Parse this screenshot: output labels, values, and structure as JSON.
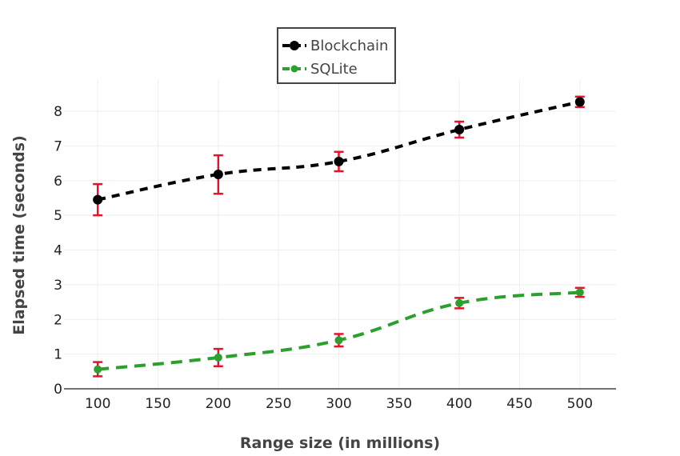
{
  "chart_data": {
    "type": "line",
    "xlabel": "Range size (in millions)",
    "ylabel": "Elapsed time (seconds)",
    "xlim": [
      72,
      530
    ],
    "ylim": [
      0,
      8.9
    ],
    "xticks": [
      100,
      150,
      200,
      250,
      300,
      350,
      400,
      450,
      500
    ],
    "yticks": [
      0,
      1,
      2,
      3,
      4,
      5,
      6,
      7,
      8
    ],
    "grid": true,
    "legend_position": "top-center",
    "x": [
      100,
      200,
      300,
      400,
      500
    ],
    "series": [
      {
        "name": "Blockchain",
        "color": "#000000",
        "values": [
          5.45,
          6.18,
          6.55,
          7.47,
          8.27
        ],
        "error_low": [
          5.0,
          5.62,
          6.27,
          7.24,
          8.12
        ],
        "error_high": [
          5.9,
          6.73,
          6.83,
          7.7,
          8.42
        ],
        "line_style": "dashed",
        "marker": "circle"
      },
      {
        "name": "SQLite",
        "color": "#2ca02c",
        "values": [
          0.56,
          0.9,
          1.4,
          2.47,
          2.78
        ],
        "error_low": [
          0.36,
          0.65,
          1.22,
          2.32,
          2.65
        ],
        "error_high": [
          0.77,
          1.15,
          1.58,
          2.62,
          2.91
        ],
        "line_style": "dashed",
        "marker": "circle"
      }
    ],
    "error_bar_color": "#e8112d"
  }
}
